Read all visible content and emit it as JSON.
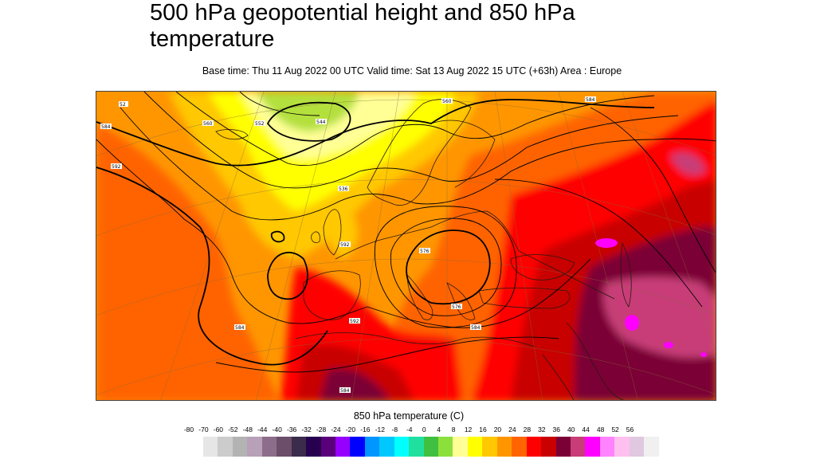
{
  "header": {
    "title": "500 hPa geopotential height and 850 hPa temperature",
    "subtitle": "Base time: Thu 11 Aug 2022 00 UTC Valid time: Sat 13 Aug 2022 15 UTC (+63h) Area : Europe"
  },
  "map": {
    "area": "Europe",
    "contour_labels": [
      "52",
      "584",
      "560",
      "552",
      "544",
      "592",
      "536",
      "560",
      "584",
      "592",
      "576",
      "584",
      "584",
      "592",
      "584",
      "576"
    ]
  },
  "colorbar": {
    "title": "850 hPa temperature (C)",
    "ticks": [
      "-80",
      "-70",
      "-60",
      "-52",
      "-48",
      "-44",
      "-40",
      "-36",
      "-32",
      "-28",
      "-24",
      "-20",
      "-16",
      "-12",
      "-8",
      "-4",
      "0",
      "4",
      "8",
      "12",
      "16",
      "20",
      "24",
      "28",
      "32",
      "36",
      "40",
      "44",
      "48",
      "52",
      "56"
    ],
    "colors": [
      "#e6e6e6",
      "#cccccc",
      "#b3b3b3",
      "#b8a0b8",
      "#8c6e8c",
      "#6a4e6a",
      "#3c2c4c",
      "#280050",
      "#5a007a",
      "#9600ff",
      "#0000ff",
      "#0096ff",
      "#00c8ff",
      "#00ffff",
      "#20e0a0",
      "#40c040",
      "#8ce03c",
      "#ffff96",
      "#ffff00",
      "#ffc800",
      "#ff9600",
      "#ff6400",
      "#ff0000",
      "#c80000",
      "#7a0036",
      "#c83c78",
      "#ff00ff",
      "#ff82ff",
      "#ffc0f0",
      "#e0c8e0",
      "#f0f0f0"
    ]
  }
}
